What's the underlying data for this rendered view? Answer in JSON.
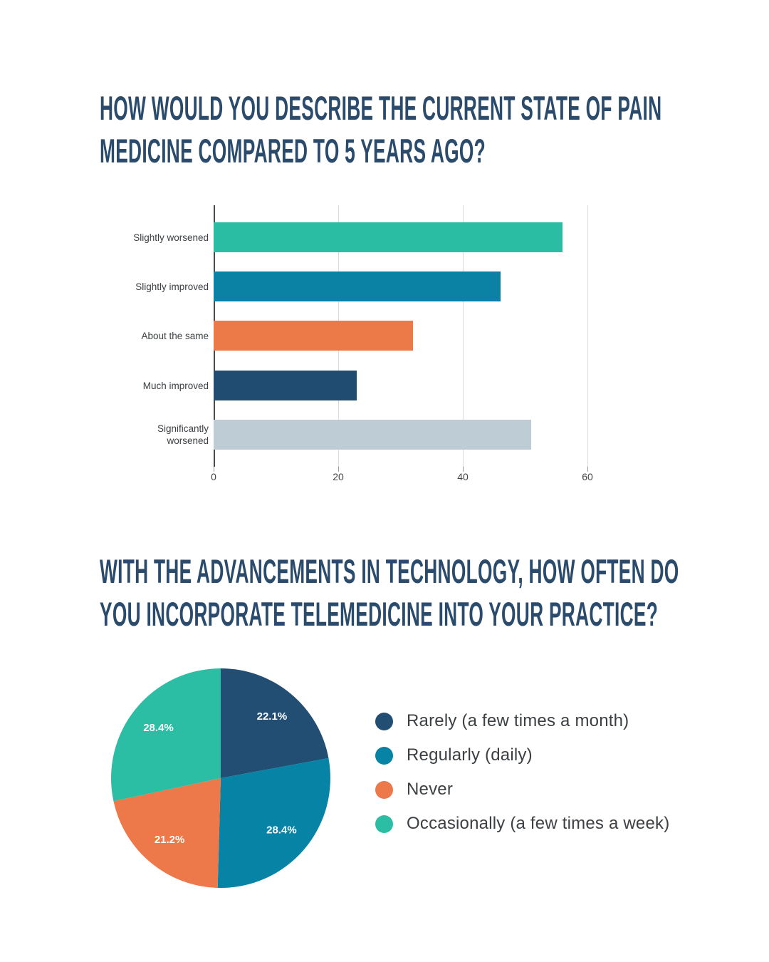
{
  "colors": {
    "headline": "#2B4B6D",
    "background": "#FFFFFF",
    "axis_line": "#4A4A4A",
    "gridline": "#DCDCDC",
    "label_text": "#3C4043",
    "tick_text": "#444444",
    "pie_value_text": "#FFFFFF"
  },
  "section1": {
    "title_line1": "HOW WOULD YOU DESCRIBE THE CURRENT STATE OF PAIN",
    "title_line2": "MEDICINE COMPARED TO 5 YEARS AGO?"
  },
  "section2": {
    "title_line1": "WITH THE ADVANCEMENTS IN TECHNOLOGY, HOW OFTEN DO",
    "title_line2": "YOU INCORPORATE TELEMEDICINE INTO YOUR PRACTICE?"
  },
  "chart_data": [
    {
      "type": "bar",
      "orientation": "horizontal",
      "title": "",
      "xlabel": "",
      "ylabel": "",
      "categories": [
        "Slightly worsened",
        "Slightly improved",
        "About the same",
        "Much improved",
        "Significantly worsened"
      ],
      "values": [
        56,
        46,
        32,
        23,
        51
      ],
      "colors": [
        "#2ABDA3",
        "#0B81A4",
        "#EC7A48",
        "#204C72",
        "#BECDD5"
      ],
      "xlim": [
        0,
        60
      ],
      "x_ticks": [
        0,
        20,
        40,
        60
      ],
      "grid": true,
      "legend_position": "none"
    },
    {
      "type": "pie",
      "title": "",
      "labels": [
        "Rarely (a few times a month)",
        "Regularly (daily)",
        "Never",
        "Occasionally (a few times a week)"
      ],
      "values": [
        22.1,
        28.4,
        21.2,
        28.4
      ],
      "display_labels": [
        "22.1%",
        "28.4%",
        "21.2%",
        "28.4%"
      ],
      "colors": [
        "#224E74",
        "#0783A5",
        "#ED7849",
        "#2BBEA4"
      ],
      "start_angle_deg": 0,
      "direction": "clockwise",
      "legend_position": "right"
    }
  ]
}
